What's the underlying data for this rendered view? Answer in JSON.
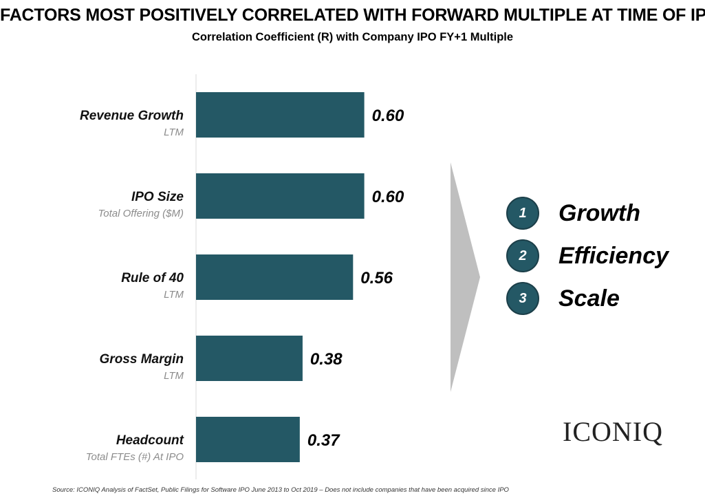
{
  "title": "FACTORS MOST POSITIVELY CORRELATED WITH FORWARD MULTIPLE AT TIME OF IPO",
  "subtitle": "Correlation Coefficient (R) with Company IPO FY+1 Multiple",
  "chart_data": {
    "type": "bar",
    "orientation": "horizontal",
    "title": "FACTORS MOST POSITIVELY CORRELATED WITH FORWARD MULTIPLE AT TIME OF IPO",
    "subtitle": "Correlation Coefficient (R) with Company IPO FY+1 Multiple",
    "categories": [
      "Revenue Growth",
      "IPO Size",
      "Rule of 40",
      "Gross Margin",
      "Headcount"
    ],
    "category_sublabels": [
      "LTM",
      "Total Offering ($M)",
      "LTM",
      "LTM",
      "Total FTEs (#) At IPO"
    ],
    "values": [
      0.6,
      0.6,
      0.56,
      0.38,
      0.37
    ],
    "value_labels": [
      "0.60",
      "0.60",
      "0.56",
      "0.38",
      "0.37"
    ],
    "xlim": [
      0,
      0.78
    ],
    "xlabel": "",
    "ylabel": "",
    "bar_color": "#245865"
  },
  "factors": [
    {
      "number": "1",
      "label": "Growth"
    },
    {
      "number": "2",
      "label": "Efficiency"
    },
    {
      "number": "3",
      "label": "Scale"
    }
  ],
  "logo_text": "ICONIQ",
  "source": "Source:  ICONIQ Analysis of FactSet, Public Filings for Software IPO June 2013 to Oct 2019 – Does not include companies that have been acquired since IPO",
  "colors": {
    "accent": "#245865",
    "arrow": "#bfbfbf"
  }
}
